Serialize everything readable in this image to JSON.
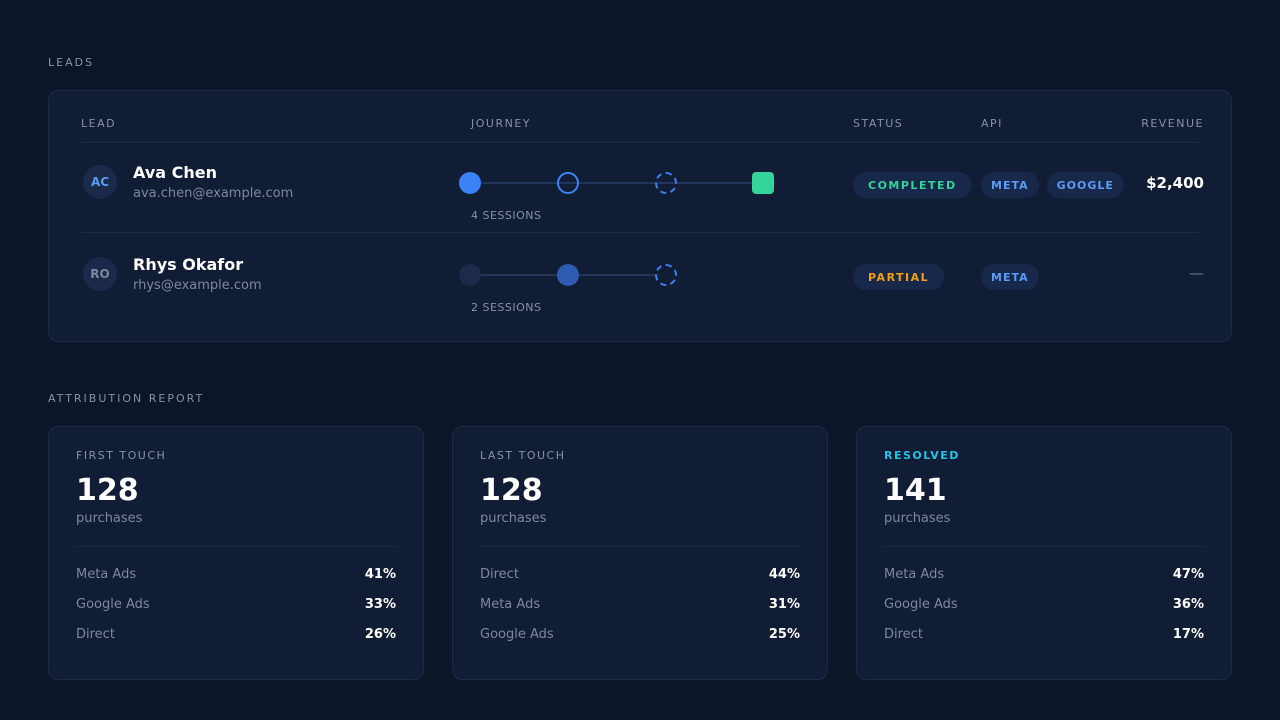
{
  "leads_section": {
    "title": "LEADS",
    "columns": {
      "lead": "LEAD",
      "journey": "JOURNEY",
      "status": "STATUS",
      "api": "API",
      "revenue": "REVENUE"
    },
    "rows": [
      {
        "initials": "AC",
        "name": "Ava Chen",
        "email": "ava.chen@example.com",
        "sessions": "4 SESSIONS",
        "status": "COMPLETED",
        "status_color": "#34d399",
        "apis": [
          "META",
          "GOOGLE"
        ],
        "revenue": "$2,400"
      },
      {
        "initials": "RO",
        "name": "Rhys Okafor",
        "email": "rhys@example.com",
        "sessions": "2 SESSIONS",
        "status": "PARTIAL",
        "status_color": "#f59e0b",
        "apis": [
          "META"
        ],
        "revenue": "—"
      }
    ]
  },
  "attribution": {
    "title": "ATTRIBUTION REPORT",
    "cards": [
      {
        "title": "FIRST TOUCH",
        "value": "128",
        "unit": "purchases",
        "rows": [
          {
            "label": "Meta Ads",
            "value": "41%"
          },
          {
            "label": "Google Ads",
            "value": "33%"
          },
          {
            "label": "Direct",
            "value": "26%"
          }
        ]
      },
      {
        "title": "LAST TOUCH",
        "value": "128",
        "unit": "purchases",
        "rows": [
          {
            "label": "Direct",
            "value": "44%"
          },
          {
            "label": "Meta Ads",
            "value": "31%"
          },
          {
            "label": "Google Ads",
            "value": "25%"
          }
        ]
      },
      {
        "title": "RESOLVED",
        "value": "141",
        "unit": "purchases",
        "rows": [
          {
            "label": "Meta Ads",
            "value": "47%"
          },
          {
            "label": "Google Ads",
            "value": "36%"
          },
          {
            "label": "Direct",
            "value": "17%"
          }
        ]
      }
    ]
  },
  "colors": {
    "background": "#0c1628",
    "panel": "#111d35",
    "accent_blue": "#3b82f6",
    "accent_cyan": "#22c3e6",
    "success": "#34d399",
    "warning": "#f59e0b"
  }
}
